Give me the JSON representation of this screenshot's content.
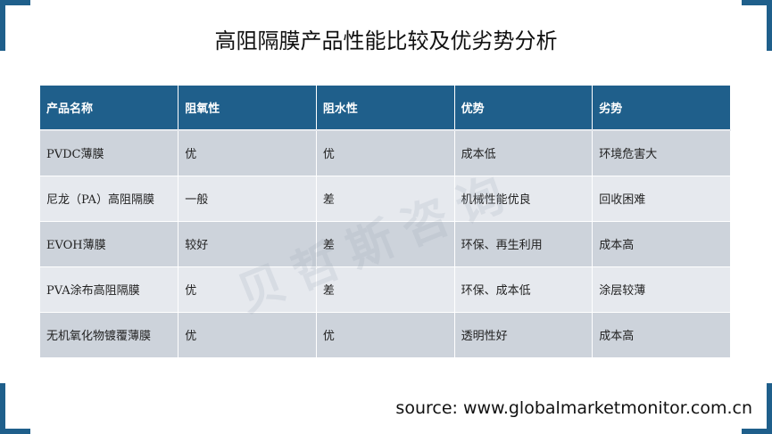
{
  "title": "高阻隔膜产品性能比较及优劣势分析",
  "table": {
    "headers": [
      "产品名称",
      "阻氧性",
      "阻水性",
      "优势",
      "劣势"
    ],
    "rows": [
      [
        "PVDC薄膜",
        "优",
        "优",
        "成本低",
        "环境危害大"
      ],
      [
        "尼龙（PA）高阻隔膜",
        "一般",
        "差",
        "机械性能优良",
        "回收困难"
      ],
      [
        "EVOH薄膜",
        "较好",
        "差",
        "环保、再生利用",
        "成本高"
      ],
      [
        "PVA涂布高阻隔膜",
        "优",
        "差",
        "环保、成本低",
        "涂层较薄"
      ],
      [
        "无机氧化物镀覆薄膜",
        "优",
        "优",
        "透明性好",
        "成本高"
      ]
    ]
  },
  "watermark": "贝哲斯咨询",
  "source": "source: www.globalmarketmonitor.com.cn",
  "colors": {
    "accent": "#1f5f8b",
    "row_dark": "#cdd3db",
    "row_light": "#e6e9ee"
  }
}
